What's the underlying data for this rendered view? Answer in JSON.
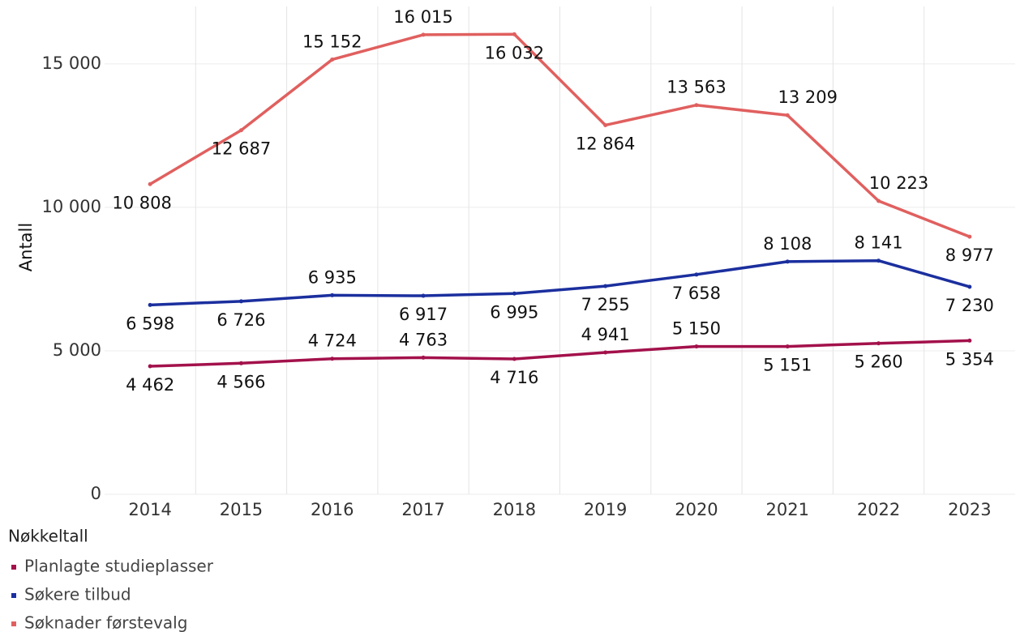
{
  "chart_data": {
    "type": "line",
    "y_label": "Antall",
    "legend_title": "Nøkkeltall",
    "categories": [
      "2014",
      "2015",
      "2016",
      "2017",
      "2018",
      "2019",
      "2020",
      "2021",
      "2022",
      "2023"
    ],
    "ylim": [
      0,
      17000
    ],
    "yticks": [
      0,
      {
        "value": 5000,
        "label": "5 000"
      },
      {
        "value": 10000,
        "label": "10 000"
      },
      {
        "value": 15000,
        "label": "15 000"
      }
    ],
    "grid": true,
    "series": [
      {
        "name": "Planlagte studieplasser",
        "color": "#a3114b",
        "values": [
          4462,
          4566,
          4724,
          4763,
          4716,
          4941,
          5150,
          5151,
          5260,
          5354
        ],
        "value_labels": [
          "4 462",
          "4 566",
          "4 724",
          "4 763",
          "4 716",
          "4 941",
          "5 150",
          "5 151",
          "5 260",
          "5 354"
        ]
      },
      {
        "name": "Søkere tilbud",
        "color": "#1b2f9e",
        "values": [
          6598,
          6726,
          6935,
          6917,
          6995,
          7255,
          7658,
          8108,
          8141,
          7230
        ],
        "value_labels": [
          "6 598",
          "6 726",
          "6 935",
          "6 917",
          "6 995",
          "7 255",
          "7 658",
          "8 108",
          "8 141",
          "7 230"
        ]
      },
      {
        "name": "Søknader førstevalg",
        "color": "#e0605f",
        "values": [
          10808,
          12687,
          15152,
          16015,
          16032,
          12864,
          13563,
          13209,
          10223,
          8977
        ],
        "value_labels": [
          "10 808",
          "12 687",
          "15 152",
          "16 015",
          "16 032",
          "12 864",
          "13 563",
          "13 209",
          "10 223",
          "8 977"
        ]
      }
    ]
  }
}
